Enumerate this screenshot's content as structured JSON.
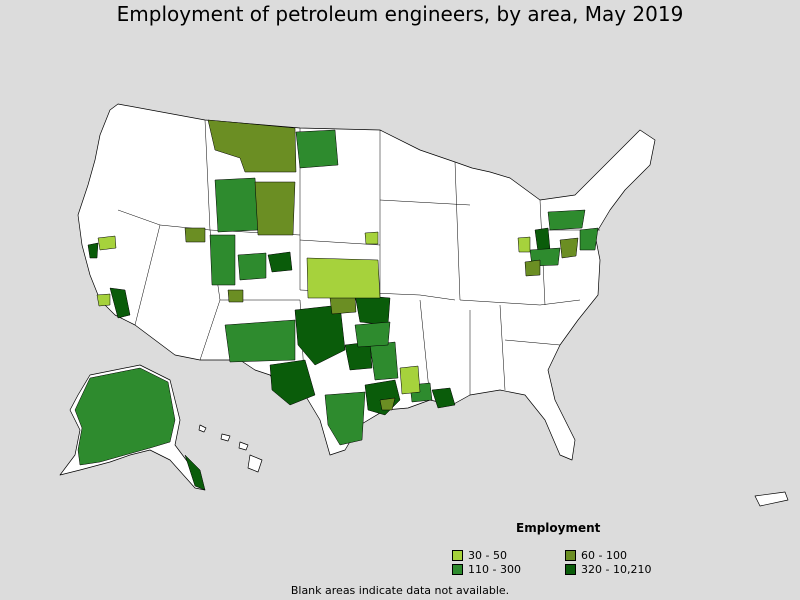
{
  "title": "Employment of petroleum engineers, by area, May 2019",
  "legend": {
    "title": "Employment",
    "items": [
      {
        "label": "30 - 50",
        "color": "#a6d23c"
      },
      {
        "label": "60 - 100",
        "color": "#6b8e23"
      },
      {
        "label": "110 - 300",
        "color": "#2e8b2e"
      },
      {
        "label": "320 - 10,210",
        "color": "#0a5c0a"
      }
    ]
  },
  "footnote": "Blank areas indicate data not available.",
  "colors": {
    "background": "#dcdcdc",
    "no_data": "#ffffff",
    "border": "#000000"
  }
}
